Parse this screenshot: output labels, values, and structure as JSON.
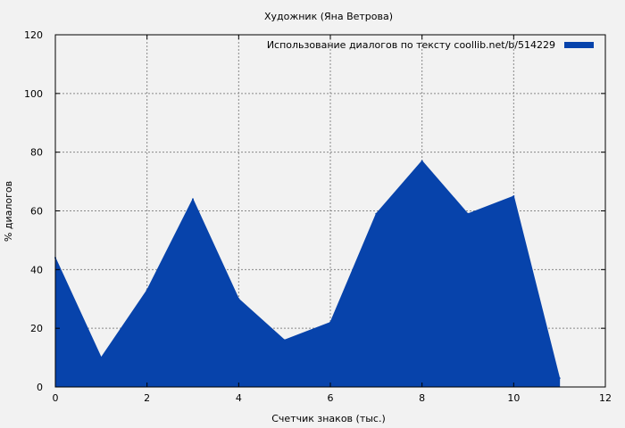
{
  "chart_data": {
    "type": "area",
    "title": "Художник (Яна Ветрова)",
    "xlabel": "Счетчик знаков (тыс.)",
    "ylabel": "% диалогов",
    "xlim": [
      0,
      12
    ],
    "ylim": [
      0,
      120
    ],
    "xticks": [
      0,
      2,
      4,
      6,
      8,
      10,
      12
    ],
    "yticks": [
      0,
      20,
      40,
      60,
      80,
      100,
      120
    ],
    "xtick_labels": [
      "0",
      "2",
      "4",
      "6",
      "8",
      "10",
      "12"
    ],
    "ytick_labels": [
      "0",
      "20",
      "40",
      "60",
      "80",
      "100",
      "120"
    ],
    "grid": true,
    "legend_position": "top-right",
    "series": [
      {
        "name": "Использование диалогов по тексту  coollib.net/b/514229",
        "color": "#0743ab",
        "x": [
          0,
          1,
          2,
          3,
          4,
          5,
          6,
          7,
          8,
          9,
          10,
          11
        ],
        "y": [
          44,
          10,
          33,
          64,
          30,
          16,
          22,
          59,
          77,
          59,
          65,
          3
        ]
      }
    ]
  }
}
